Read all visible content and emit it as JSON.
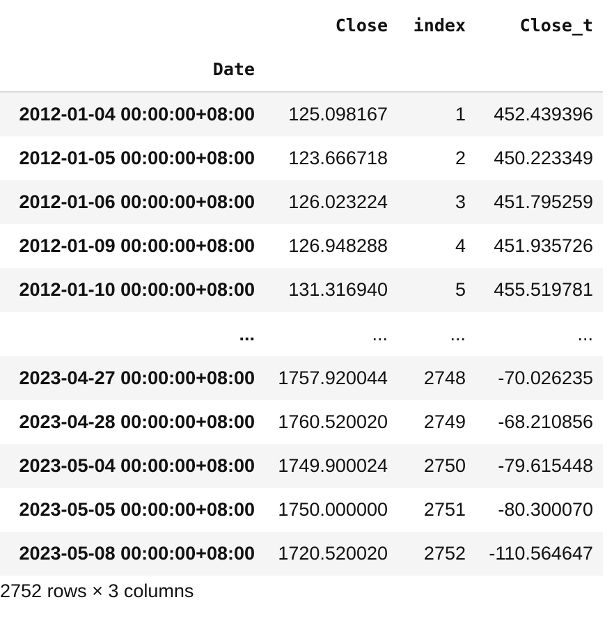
{
  "dataframe": {
    "columns": [
      "Close",
      "index",
      "Close_t"
    ],
    "index_name": "Date",
    "rows_head": [
      {
        "date": "2012-01-04 00:00:00+08:00",
        "close": "125.098167",
        "index": "1",
        "close_t": "452.439396"
      },
      {
        "date": "2012-01-05 00:00:00+08:00",
        "close": "123.666718",
        "index": "2",
        "close_t": "450.223349"
      },
      {
        "date": "2012-01-06 00:00:00+08:00",
        "close": "126.023224",
        "index": "3",
        "close_t": "451.795259"
      },
      {
        "date": "2012-01-09 00:00:00+08:00",
        "close": "126.948288",
        "index": "4",
        "close_t": "451.935726"
      },
      {
        "date": "2012-01-10 00:00:00+08:00",
        "close": "131.316940",
        "index": "5",
        "close_t": "455.519781"
      }
    ],
    "ellipsis": "...",
    "rows_tail": [
      {
        "date": "2023-04-27 00:00:00+08:00",
        "close": "1757.920044",
        "index": "2748",
        "close_t": "-70.026235"
      },
      {
        "date": "2023-04-28 00:00:00+08:00",
        "close": "1760.520020",
        "index": "2749",
        "close_t": "-68.210856"
      },
      {
        "date": "2023-05-04 00:00:00+08:00",
        "close": "1749.900024",
        "index": "2750",
        "close_t": "-79.615448"
      },
      {
        "date": "2023-05-05 00:00:00+08:00",
        "close": "1750.000000",
        "index": "2751",
        "close_t": "-80.300070"
      },
      {
        "date": "2023-05-08 00:00:00+08:00",
        "close": "1720.520020",
        "index": "2752",
        "close_t": "-110.564647"
      }
    ],
    "dimensions": "2752 rows × 3 columns"
  }
}
